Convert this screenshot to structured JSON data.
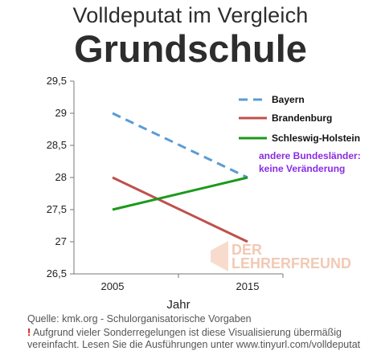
{
  "chart_data": {
    "type": "line",
    "title": "Volldeputat im Vergleich",
    "subtitle": "Grundschule",
    "xlabel": "Jahr",
    "ylabel": "",
    "x": [
      "2005",
      "2015"
    ],
    "ylim": [
      26.5,
      29.5
    ],
    "yticks": [
      "26,5",
      "27",
      "27,5",
      "28",
      "28,5",
      "29",
      "29,5"
    ],
    "grid": false,
    "legend_position": "top-right",
    "series": [
      {
        "name": "Bayern",
        "values": [
          29,
          28
        ],
        "color": "#5b9bd5",
        "style": "dashed"
      },
      {
        "name": "Brandenburg",
        "values": [
          28,
          27
        ],
        "color": "#c0504d",
        "style": "solid"
      },
      {
        "name": "Schleswig-Holstein",
        "values": [
          27.5,
          28
        ],
        "color": "#1a9a1a",
        "style": "solid"
      }
    ],
    "annotation": [
      "andere Bundesländer:",
      "keine Veränderung"
    ],
    "annotation_color": "#8a2be2"
  },
  "watermark": {
    "line1": "DER",
    "line2": "LEHRERFREUND"
  },
  "footer": {
    "source": "Quelle: kmk.org - Schulorganisatorische Vorgaben",
    "exclamation": "!",
    "disclaimer": "Aufgrund vieler Sonderregelungen ist diese Visualisierung übermäßig vereinfacht. Lesen Sie die Ausführungen unter www.tinyurl.com/volldeputat"
  }
}
